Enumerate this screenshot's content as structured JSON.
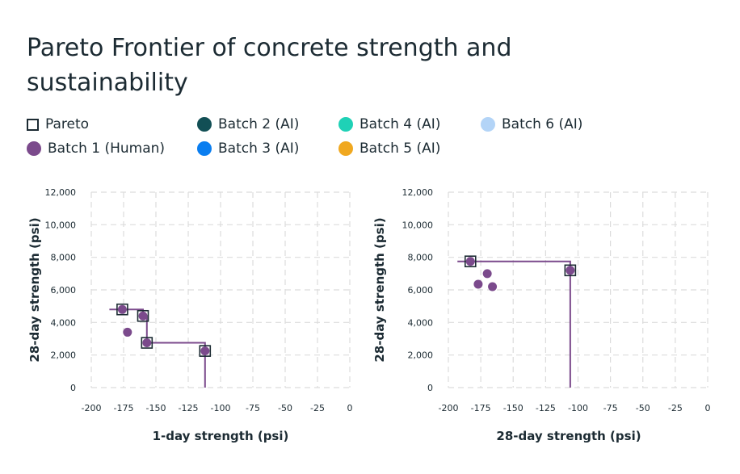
{
  "title": "Pareto Frontier of concrete strength and sustainability",
  "colors": {
    "pareto": "#1c2b33",
    "batch1": "#7b4a8c",
    "batch2": "#124f55",
    "batch3": "#0a7ef0",
    "batch4": "#1fd1b6",
    "batch5": "#f0a820",
    "batch6": "#b3d4f7",
    "grid": "#dcdcdc"
  },
  "legend": [
    {
      "label": "Pareto",
      "marker": "square",
      "color": "#1c2b33"
    },
    {
      "label": "Batch 1 (Human)",
      "marker": "dot",
      "color": "#7b4a8c"
    },
    {
      "label": "Batch 2 (AI)",
      "marker": "dot",
      "color": "#124f55"
    },
    {
      "label": "Batch 3 (AI)",
      "marker": "dot",
      "color": "#0a7ef0"
    },
    {
      "label": "Batch 4 (AI)",
      "marker": "dot",
      "color": "#1fd1b6"
    },
    {
      "label": "Batch 5 (AI)",
      "marker": "dot",
      "color": "#f0a820"
    },
    {
      "label": "Batch 6 (AI)",
      "marker": "dot",
      "color": "#b3d4f7"
    }
  ],
  "chart_data": [
    {
      "type": "scatter",
      "xlabel": "1-day strength (psi)",
      "ylabel": "28-day strength (psi)",
      "xlim": [
        -200,
        0
      ],
      "ylim": [
        0,
        12000
      ],
      "xticks": [
        "-200",
        "-175",
        "-150",
        "-125",
        "-100",
        "-75",
        "-50",
        "-25",
        "0"
      ],
      "yticks": [
        "0",
        "2,000",
        "4,000",
        "6,000",
        "8,000",
        "10,000",
        "12,000"
      ],
      "grid": true,
      "series": [
        {
          "name": "Batch 1 (Human)",
          "points": [
            [
              -176,
              4800
            ],
            [
              -160,
              4400
            ],
            [
              -157,
              2750
            ],
            [
              -112,
              2250
            ],
            [
              -172,
              3400
            ]
          ]
        },
        {
          "name": "Pareto",
          "points": [
            [
              -176,
              4800
            ],
            [
              -160,
              4400
            ],
            [
              -157,
              2750
            ],
            [
              -112,
              2250
            ]
          ]
        }
      ]
    },
    {
      "type": "scatter",
      "xlabel": "28-day strength (psi)",
      "ylabel": "28-day strength (psi)",
      "xlim": [
        -200,
        0
      ],
      "ylim": [
        0,
        12000
      ],
      "xticks": [
        "-200",
        "-175",
        "-150",
        "-125",
        "-100",
        "-75",
        "-50",
        "-25",
        "0"
      ],
      "yticks": [
        "0",
        "2,000",
        "4,000",
        "6,000",
        "8,000",
        "10,000",
        "12,000"
      ],
      "grid": true,
      "series": [
        {
          "name": "Batch 1 (Human)",
          "points": [
            [
              -183,
              7750
            ],
            [
              -106,
              7200
            ],
            [
              -170,
              7000
            ],
            [
              -177,
              6350
            ],
            [
              -166,
              6200
            ]
          ]
        },
        {
          "name": "Pareto",
          "points": [
            [
              -183,
              7750
            ],
            [
              -106,
              7200
            ]
          ]
        }
      ]
    }
  ]
}
